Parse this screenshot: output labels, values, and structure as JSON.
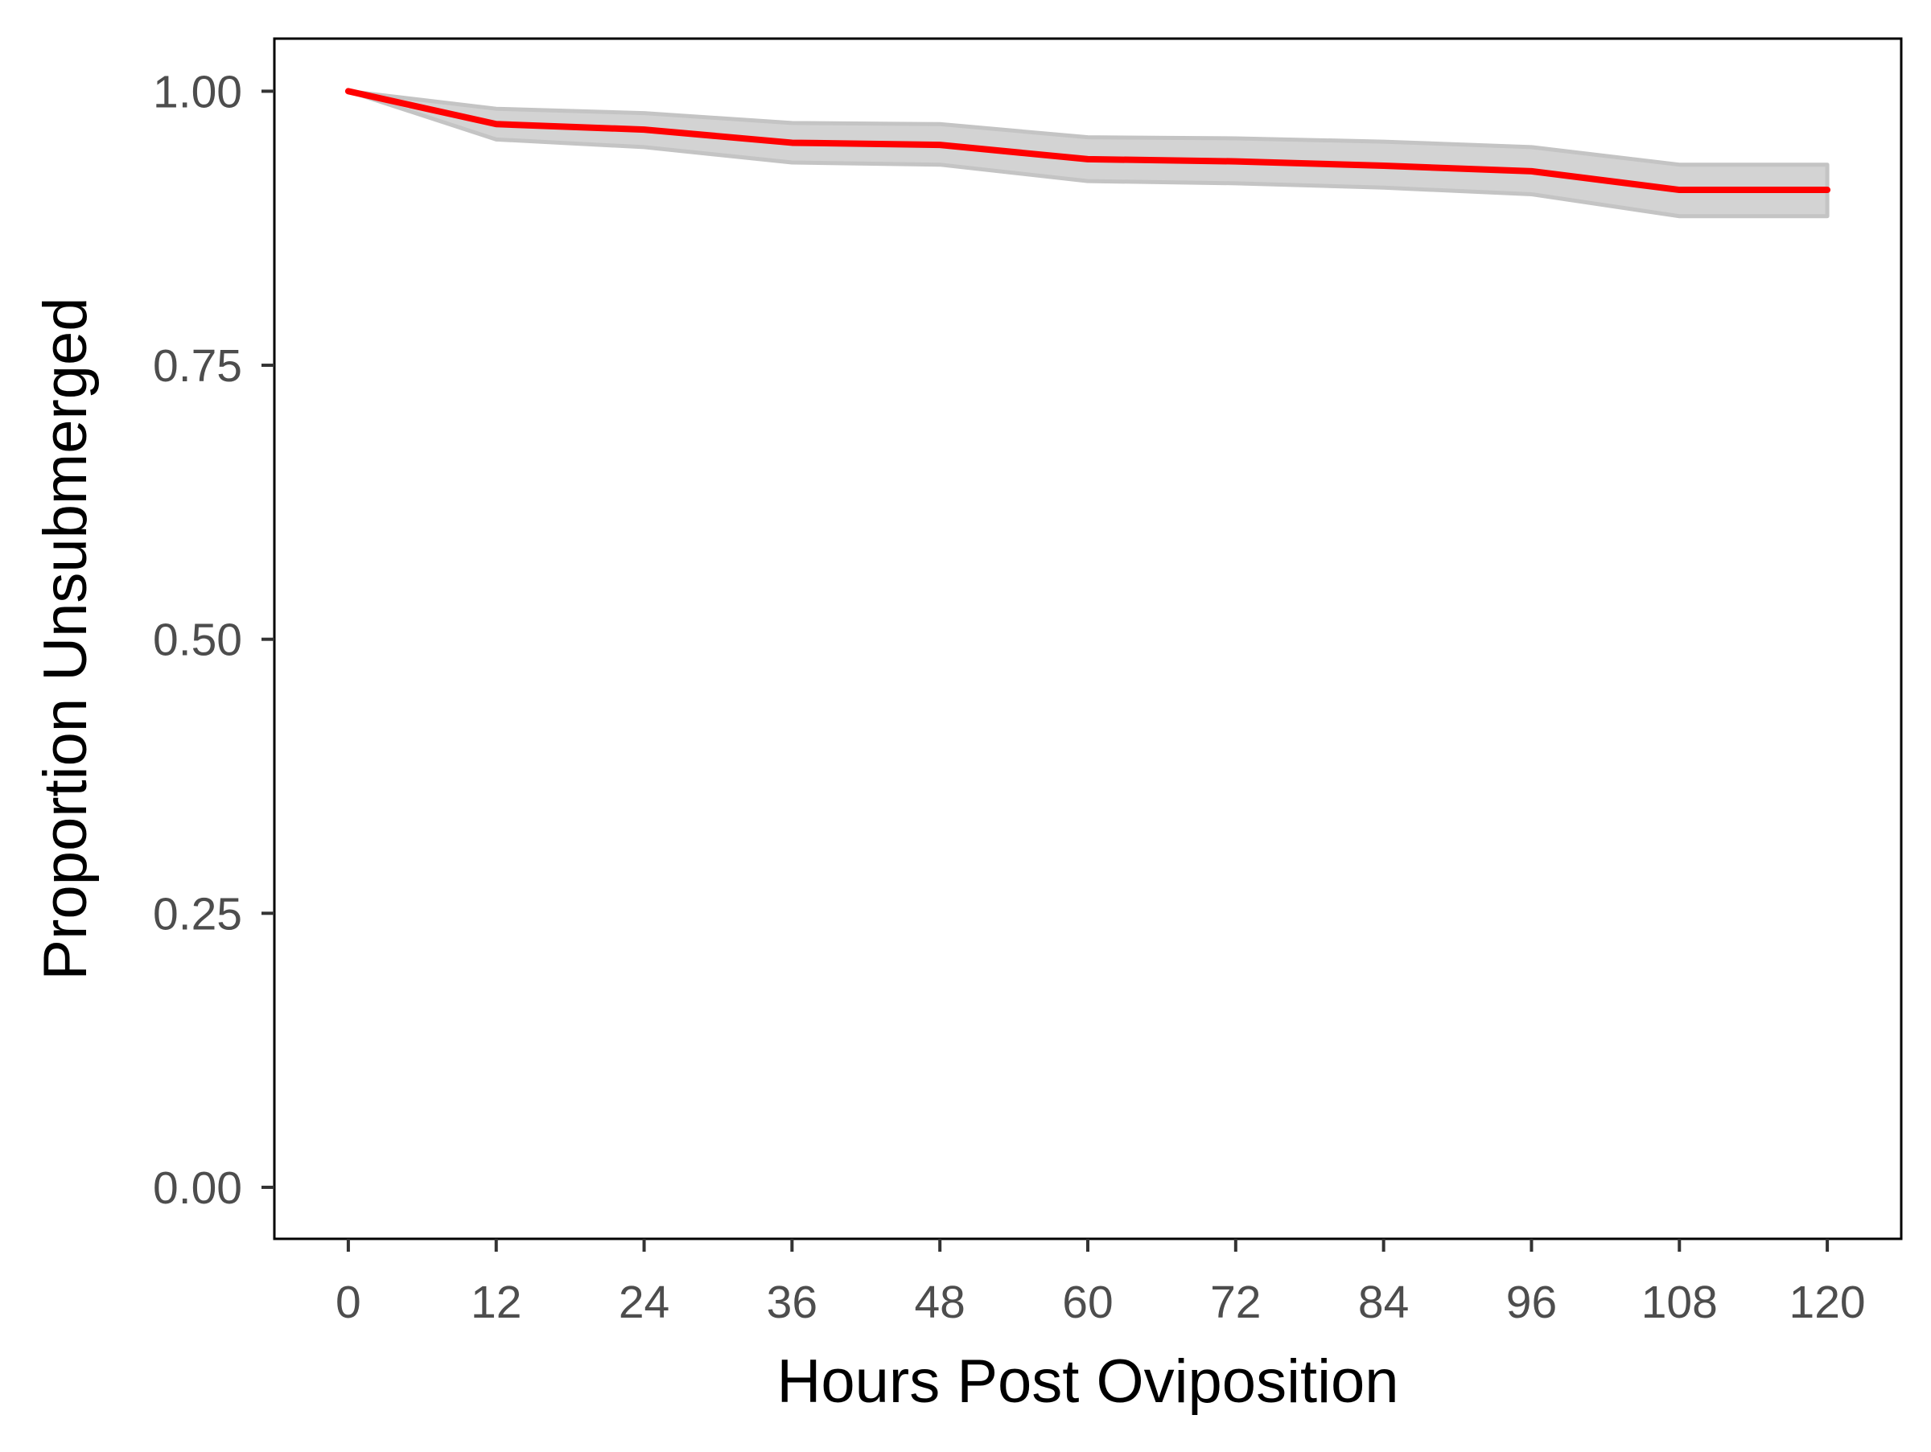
{
  "chart_data": {
    "type": "line",
    "title": "",
    "xlabel": "Hours Post Oviposition",
    "ylabel": "Proportion Unsubmerged",
    "x_ticks": [
      0,
      12,
      24,
      36,
      48,
      60,
      72,
      84,
      96,
      108,
      120
    ],
    "x_tick_labels": [
      "0",
      "12",
      "24",
      "36",
      "48",
      "60",
      "72",
      "84",
      "96",
      "108",
      "120"
    ],
    "y_ticks": [
      0,
      0.25,
      0.5,
      0.75,
      1
    ],
    "y_tick_labels": [
      "0.00",
      "0.25",
      "0.50",
      "0.75",
      "1.00"
    ],
    "xlim": [
      -6,
      126
    ],
    "ylim": [
      -0.047,
      1.048
    ],
    "grid": false,
    "legend": "none",
    "series": [
      {
        "x": [
          0,
          12,
          24,
          36,
          48,
          60,
          72,
          84,
          96,
          108,
          120
        ],
        "values": [
          1.0,
          0.97,
          0.965,
          0.953,
          0.951,
          0.938,
          0.936,
          0.932,
          0.927,
          0.91,
          0.91
        ],
        "lower": [
          1.0,
          0.956,
          0.949,
          0.935,
          0.933,
          0.918,
          0.916,
          0.912,
          0.906,
          0.886,
          0.886
        ],
        "upper": [
          1.0,
          0.984,
          0.98,
          0.971,
          0.97,
          0.958,
          0.957,
          0.954,
          0.949,
          0.933,
          0.933
        ],
        "color": "#ff0000",
        "band_color": "#d3d3d3"
      }
    ]
  }
}
